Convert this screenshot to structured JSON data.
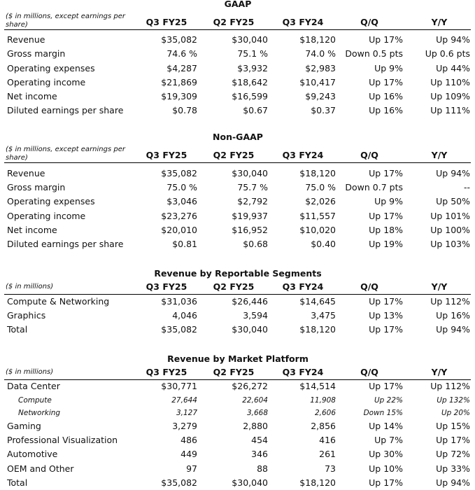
{
  "tables": [
    {
      "title": "GAAP",
      "header": {
        "label": "($ in millions, except earnings per share)",
        "columns": [
          "Q3 FY25",
          "Q2 FY25",
          "Q3 FY24",
          "Q/Q",
          "Y/Y"
        ]
      },
      "rows": [
        {
          "label": "Revenue",
          "cells": [
            "$35,082",
            "$30,040",
            "$18,120",
            "Up 17%",
            "Up 94%"
          ]
        },
        {
          "label": "Gross margin",
          "cells": [
            "74.6 %",
            "75.1 %",
            "74.0 %",
            "Down 0.5 pts",
            "Up 0.6 pts"
          ]
        },
        {
          "label": "Operating expenses",
          "cells": [
            "$4,287",
            "$3,932",
            "$2,983",
            "Up 9%",
            "Up 44%"
          ]
        },
        {
          "label": "Operating income",
          "cells": [
            "$21,869",
            "$18,642",
            "$10,417",
            "Up 17%",
            "Up 110%"
          ]
        },
        {
          "label": "Net income",
          "cells": [
            "$19,309",
            "$16,599",
            "$9,243",
            "Up 16%",
            "Up 109%"
          ]
        },
        {
          "label": "Diluted earnings per share",
          "cells": [
            "$0.78",
            "$0.67",
            "$0.37",
            "Up 16%",
            "Up 111%"
          ]
        }
      ]
    },
    {
      "title": "Non-GAAP",
      "header": {
        "label": "($ in millions, except earnings per share)",
        "columns": [
          "Q3 FY25",
          "Q2 FY25",
          "Q3 FY24",
          "Q/Q",
          "Y/Y"
        ]
      },
      "rows": [
        {
          "label": "Revenue",
          "cells": [
            "$35,082",
            "$30,040",
            "$18,120",
            "Up 17%",
            "Up 94%"
          ]
        },
        {
          "label": "Gross margin",
          "cells": [
            "75.0 %",
            "75.7 %",
            "75.0 %",
            "Down 0.7 pts",
            "--"
          ]
        },
        {
          "label": "Operating expenses",
          "cells": [
            "$3,046",
            "$2,792",
            "$2,026",
            "Up 9%",
            "Up 50%"
          ]
        },
        {
          "label": "Operating income",
          "cells": [
            "$23,276",
            "$19,937",
            "$11,557",
            "Up 17%",
            "Up 101%"
          ]
        },
        {
          "label": "Net income",
          "cells": [
            "$20,010",
            "$16,952",
            "$10,020",
            "Up 18%",
            "Up 100%"
          ]
        },
        {
          "label": "Diluted earnings per share",
          "cells": [
            "$0.81",
            "$0.68",
            "$0.40",
            "Up 19%",
            "Up 103%"
          ]
        }
      ]
    },
    {
      "title": "Revenue by Reportable Segments",
      "header": {
        "label": "($ in millions)",
        "columns": [
          "Q3 FY25",
          "Q2 FY25",
          "Q3 FY24",
          "Q/Q",
          "Y/Y"
        ]
      },
      "rows": [
        {
          "label": "Compute & Networking",
          "cells": [
            "$31,036",
            "$26,446",
            "$14,645",
            "Up 17%",
            "Up 112%"
          ]
        },
        {
          "label": "Graphics",
          "cells": [
            "4,046",
            "3,594",
            "3,475",
            "Up 13%",
            "Up 16%"
          ]
        },
        {
          "label": "Total",
          "cells": [
            "$35,082",
            "$30,040",
            "$18,120",
            "Up 17%",
            "Up 94%"
          ]
        }
      ]
    },
    {
      "title": "Revenue by Market Platform",
      "header": {
        "label": "($ in millions)",
        "columns": [
          "Q3 FY25",
          "Q2 FY25",
          "Q3 FY24",
          "Q/Q",
          "Y/Y"
        ]
      },
      "rows": [
        {
          "label": "Data Center",
          "cells": [
            "$30,771",
            "$26,272",
            "$14,514",
            "Up 17%",
            "Up 112%"
          ]
        },
        {
          "label": "Compute",
          "cells": [
            "27,644",
            "22,604",
            "11,908",
            "Up 22%",
            "Up 132%"
          ]
        },
        {
          "label": "Networking",
          "cells": [
            "3,127",
            "3,668",
            "2,606",
            "Down 15%",
            "Up 20%"
          ]
        },
        {
          "label": "Gaming",
          "cells": [
            "3,279",
            "2,880",
            "2,856",
            "Up 14%",
            "Up 15%"
          ]
        },
        {
          "label": "Professional Visualization",
          "cells": [
            "486",
            "454",
            "416",
            "Up 7%",
            "Up 17%"
          ]
        },
        {
          "label": "Automotive",
          "cells": [
            "449",
            "346",
            "261",
            "Up 30%",
            "Up 72%"
          ]
        },
        {
          "label": "OEM and Other",
          "cells": [
            "97",
            "88",
            "73",
            "Up 10%",
            "Up 33%"
          ]
        },
        {
          "label": "Total",
          "cells": [
            "$35,082",
            "$30,040",
            "$18,120",
            "Up 17%",
            "Up 94%"
          ]
        }
      ]
    }
  ]
}
